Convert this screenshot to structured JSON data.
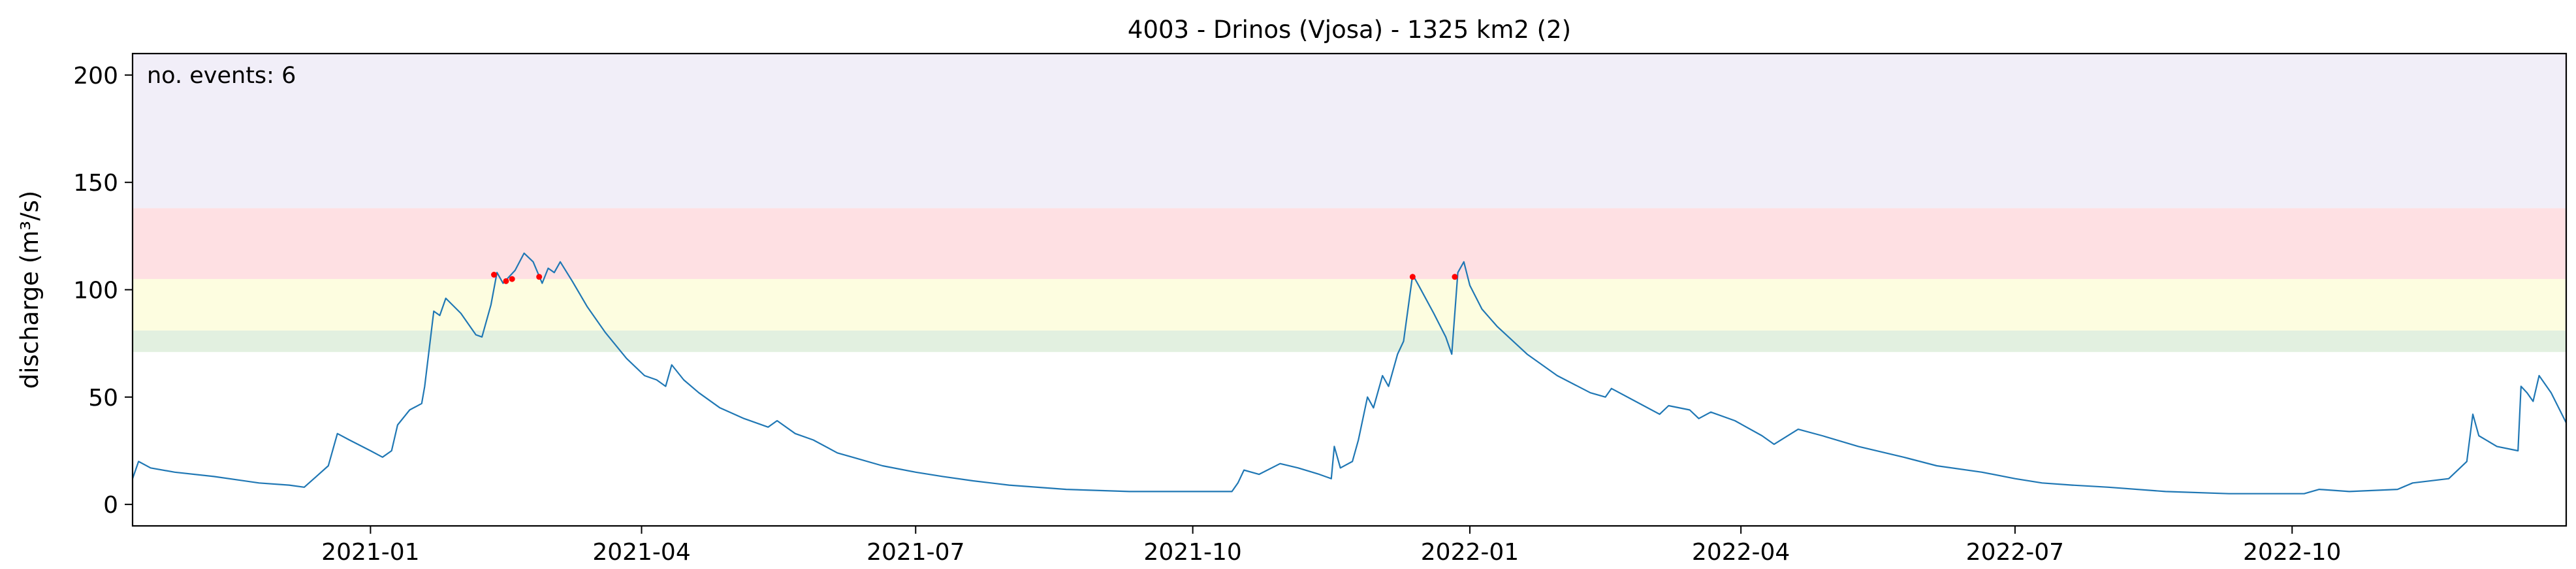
{
  "chart_data": {
    "type": "line",
    "title": "4003 - Drinos (Vjosa) - 1325 km2 (2)",
    "xlabel": "",
    "ylabel": "discharge (m³/s)",
    "annotation": "no. events: 6",
    "xlim": [
      "2020-10-14",
      "2022-12-31"
    ],
    "ylim": [
      -10,
      210
    ],
    "x_ticks": [
      "2021-01",
      "2021-04",
      "2021-07",
      "2021-10",
      "2022-01",
      "2022-04",
      "2022-07",
      "2022-10"
    ],
    "y_ticks": [
      "0",
      "50",
      "100",
      "150",
      "200"
    ],
    "grid": false,
    "threshold_bands": [
      {
        "from": 71,
        "to": 81,
        "color": "#e2f0e0"
      },
      {
        "from": 81,
        "to": 105,
        "color": "#fdfde0"
      },
      {
        "from": 105,
        "to": 138,
        "color": "#fee0e3"
      },
      {
        "from": 138,
        "to": 210,
        "color": "#f1eef8"
      }
    ],
    "series": [
      {
        "line_color": "#1f77b4",
        "points": [
          [
            "2020-10-14",
            12
          ],
          [
            "2020-10-16",
            20
          ],
          [
            "2020-10-20",
            17
          ],
          [
            "2020-10-28",
            15
          ],
          [
            "2020-11-10",
            13
          ],
          [
            "2020-11-25",
            10
          ],
          [
            "2020-12-05",
            9
          ],
          [
            "2020-12-10",
            8
          ],
          [
            "2020-12-14",
            13
          ],
          [
            "2020-12-18",
            18
          ],
          [
            "2020-12-21",
            33
          ],
          [
            "2020-12-25",
            30
          ],
          [
            "2021-01-01",
            25
          ],
          [
            "2021-01-05",
            22
          ],
          [
            "2021-01-08",
            25
          ],
          [
            "2021-01-10",
            37
          ],
          [
            "2021-01-14",
            44
          ],
          [
            "2021-01-18",
            47
          ],
          [
            "2021-01-19",
            55
          ],
          [
            "2021-01-22",
            90
          ],
          [
            "2021-01-24",
            88
          ],
          [
            "2021-01-26",
            96
          ],
          [
            "2021-01-31",
            89
          ],
          [
            "2021-02-05",
            79
          ],
          [
            "2021-02-07",
            78
          ],
          [
            "2021-02-10",
            93
          ],
          [
            "2021-02-12",
            108
          ],
          [
            "2021-02-14",
            103
          ],
          [
            "2021-02-16",
            106
          ],
          [
            "2021-02-18",
            109
          ],
          [
            "2021-02-21",
            117
          ],
          [
            "2021-02-24",
            113
          ],
          [
            "2021-02-27",
            103
          ],
          [
            "2021-03-01",
            110
          ],
          [
            "2021-03-03",
            108
          ],
          [
            "2021-03-05",
            113
          ],
          [
            "2021-03-09",
            104
          ],
          [
            "2021-03-14",
            92
          ],
          [
            "2021-03-20",
            80
          ],
          [
            "2021-03-27",
            68
          ],
          [
            "2021-04-02",
            60
          ],
          [
            "2021-04-06",
            58
          ],
          [
            "2021-04-09",
            55
          ],
          [
            "2021-04-11",
            65
          ],
          [
            "2021-04-15",
            58
          ],
          [
            "2021-04-20",
            52
          ],
          [
            "2021-04-27",
            45
          ],
          [
            "2021-05-05",
            40
          ],
          [
            "2021-05-13",
            36
          ],
          [
            "2021-05-16",
            39
          ],
          [
            "2021-05-22",
            33
          ],
          [
            "2021-05-28",
            30
          ],
          [
            "2021-06-05",
            24
          ],
          [
            "2021-06-10",
            22
          ],
          [
            "2021-06-20",
            18
          ],
          [
            "2021-07-01",
            15
          ],
          [
            "2021-07-10",
            13
          ],
          [
            "2021-07-20",
            11
          ],
          [
            "2021-08-01",
            9
          ],
          [
            "2021-08-20",
            7
          ],
          [
            "2021-09-10",
            6
          ],
          [
            "2021-10-05",
            6
          ],
          [
            "2021-10-14",
            6
          ],
          [
            "2021-10-16",
            10
          ],
          [
            "2021-10-18",
            16
          ],
          [
            "2021-10-23",
            14
          ],
          [
            "2021-10-30",
            19
          ],
          [
            "2021-11-05",
            17
          ],
          [
            "2021-11-12",
            14
          ],
          [
            "2021-11-16",
            12
          ],
          [
            "2021-11-17",
            27
          ],
          [
            "2021-11-19",
            17
          ],
          [
            "2021-11-23",
            20
          ],
          [
            "2021-11-25",
            30
          ],
          [
            "2021-11-28",
            50
          ],
          [
            "2021-11-30",
            45
          ],
          [
            "2021-12-03",
            60
          ],
          [
            "2021-12-05",
            55
          ],
          [
            "2021-12-08",
            70
          ],
          [
            "2021-12-10",
            76
          ],
          [
            "2021-12-13",
            107
          ],
          [
            "2021-12-15",
            102
          ],
          [
            "2021-12-20",
            89
          ],
          [
            "2021-12-24",
            78
          ],
          [
            "2021-12-26",
            70
          ],
          [
            "2021-12-28",
            108
          ],
          [
            "2021-12-30",
            113
          ],
          [
            "2022-01-01",
            102
          ],
          [
            "2022-01-05",
            91
          ],
          [
            "2022-01-10",
            83
          ],
          [
            "2022-01-20",
            70
          ],
          [
            "2022-01-30",
            60
          ],
          [
            "2022-02-10",
            52
          ],
          [
            "2022-02-15",
            50
          ],
          [
            "2022-02-17",
            54
          ],
          [
            "2022-02-25",
            48
          ],
          [
            "2022-03-05",
            42
          ],
          [
            "2022-03-08",
            46
          ],
          [
            "2022-03-15",
            44
          ],
          [
            "2022-03-18",
            40
          ],
          [
            "2022-03-22",
            43
          ],
          [
            "2022-03-30",
            39
          ],
          [
            "2022-04-08",
            32
          ],
          [
            "2022-04-12",
            28
          ],
          [
            "2022-04-20",
            35
          ],
          [
            "2022-04-28",
            32
          ],
          [
            "2022-05-10",
            27
          ],
          [
            "2022-05-25",
            22
          ],
          [
            "2022-06-05",
            18
          ],
          [
            "2022-06-20",
            15
          ],
          [
            "2022-07-01",
            12
          ],
          [
            "2022-07-10",
            10
          ],
          [
            "2022-07-20",
            9
          ],
          [
            "2022-08-01",
            8
          ],
          [
            "2022-08-20",
            6
          ],
          [
            "2022-09-10",
            5
          ],
          [
            "2022-10-05",
            5
          ],
          [
            "2022-10-10",
            7
          ],
          [
            "2022-10-20",
            6
          ],
          [
            "2022-11-05",
            7
          ],
          [
            "2022-11-10",
            10
          ],
          [
            "2022-11-22",
            12
          ],
          [
            "2022-11-28",
            20
          ],
          [
            "2022-11-30",
            42
          ],
          [
            "2022-12-02",
            32
          ],
          [
            "2022-12-08",
            27
          ],
          [
            "2022-12-15",
            25
          ],
          [
            "2022-12-16",
            55
          ],
          [
            "2022-12-18",
            52
          ],
          [
            "2022-12-20",
            48
          ],
          [
            "2022-12-22",
            60
          ],
          [
            "2022-12-26",
            52
          ],
          [
            "2022-12-31",
            38
          ]
        ]
      }
    ],
    "events": [
      {
        "date": "2021-02-11",
        "value": 107
      },
      {
        "date": "2021-02-15",
        "value": 104
      },
      {
        "date": "2021-02-17",
        "value": 105
      },
      {
        "date": "2021-02-26",
        "value": 106
      },
      {
        "date": "2021-12-13",
        "value": 106
      },
      {
        "date": "2021-12-27",
        "value": 106
      }
    ],
    "event_color": "#ff0000"
  }
}
